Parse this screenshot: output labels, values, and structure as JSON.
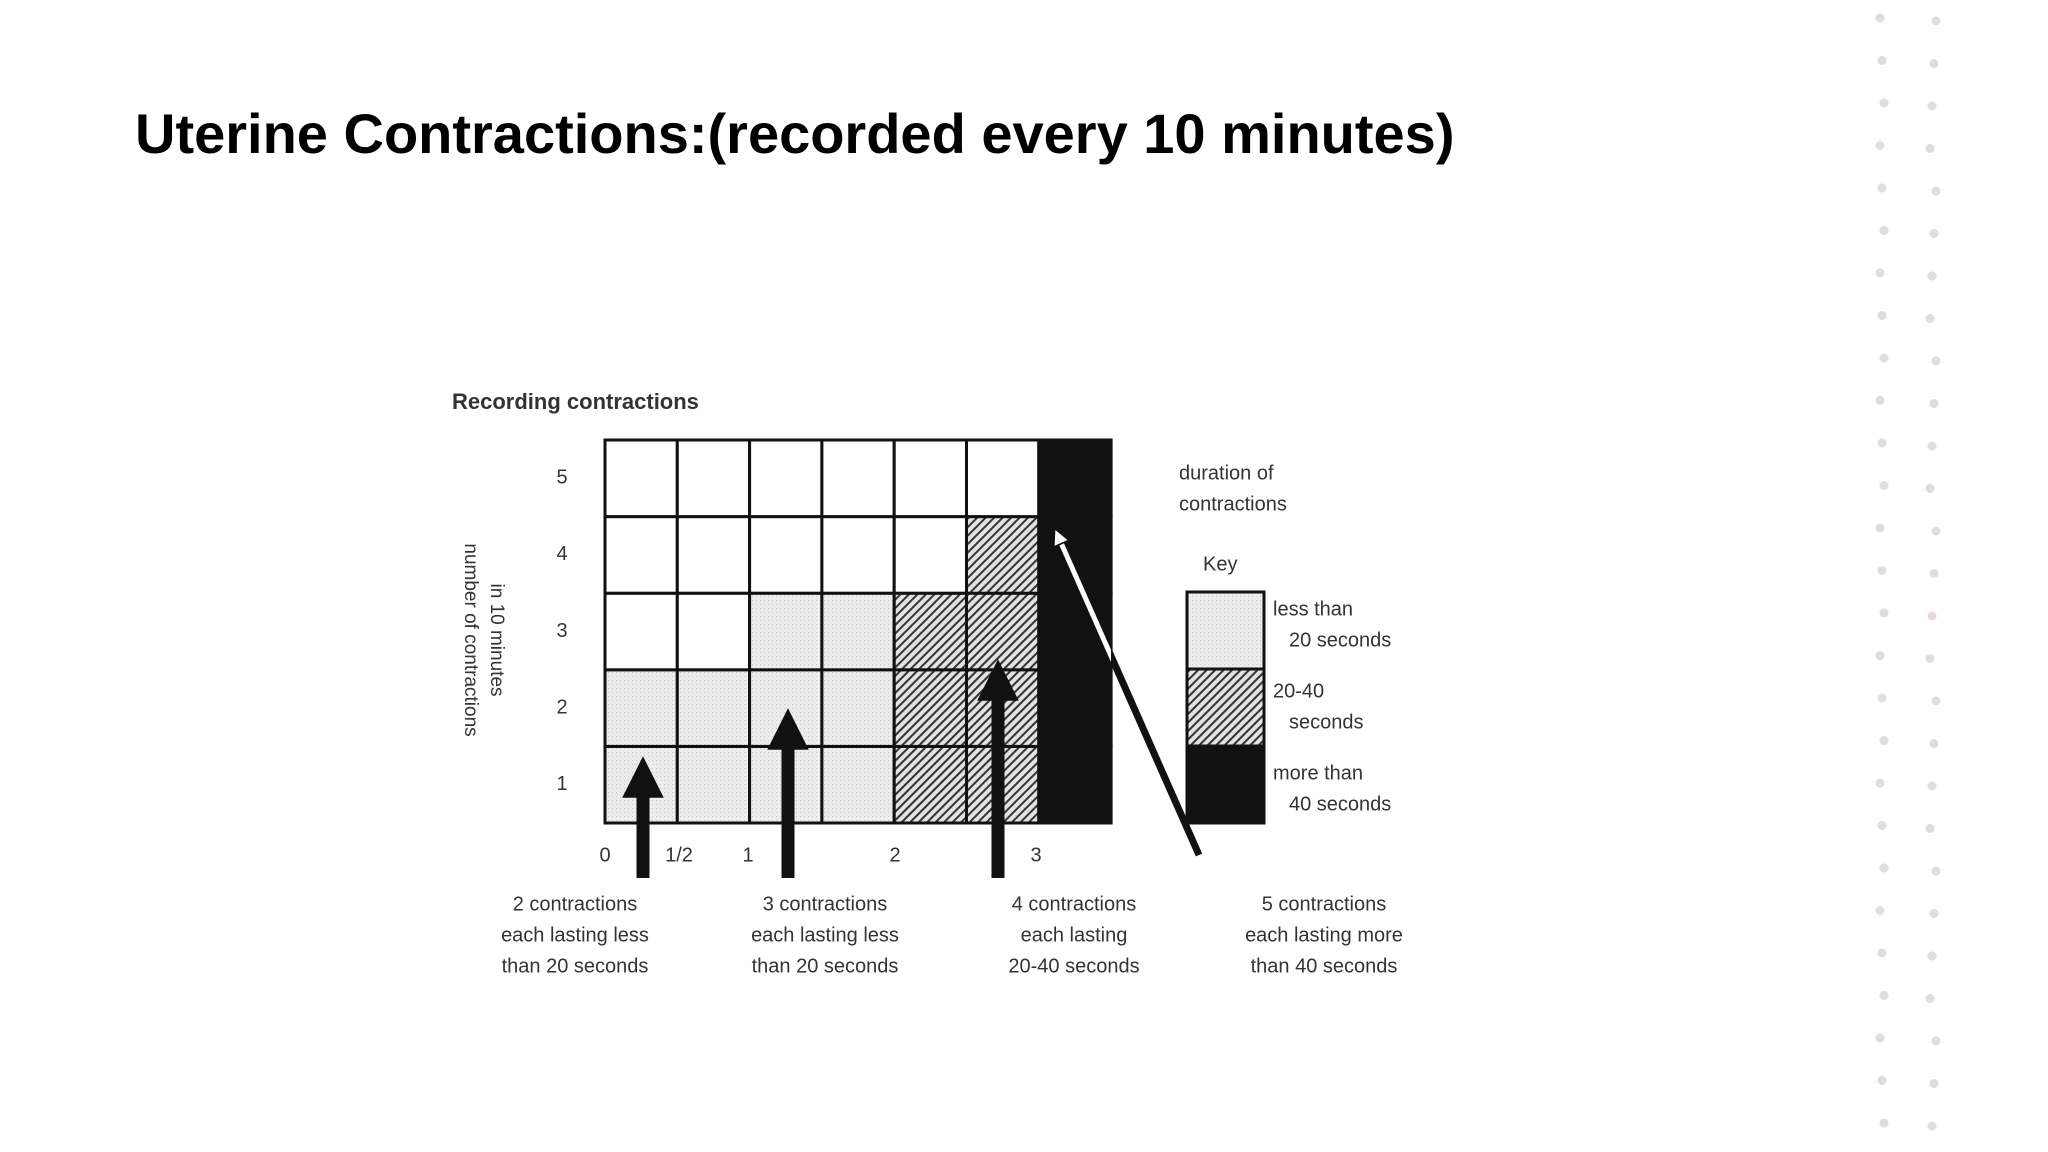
{
  "slide": {
    "title": "Uterine Contractions:(recorded every 10 minutes)",
    "diagram": {
      "title": "Recording contractions",
      "y_axis_label": [
        "number of contractions",
        "in 10 minutes"
      ],
      "y_ticks": [
        "1",
        "2",
        "3",
        "4",
        "5"
      ],
      "x_ticks": [
        "0",
        "1/2",
        "1",
        "2",
        "3"
      ],
      "key_heading": [
        "duration of",
        "contractions"
      ],
      "key_title": "Key",
      "key_items": [
        [
          "less than",
          "20 seconds"
        ],
        [
          "20-40",
          "seconds"
        ],
        [
          "more than",
          "40 seconds"
        ]
      ],
      "captions": [
        [
          "2 contractions",
          "each lasting less",
          "than 20 seconds"
        ],
        [
          "3 contractions",
          "each lasting less",
          "than 20 seconds"
        ],
        [
          "4 contractions",
          "each lasting",
          "20-40 seconds"
        ],
        [
          "5 contractions",
          "each lasting more",
          "than 40 seconds"
        ]
      ]
    }
  }
}
